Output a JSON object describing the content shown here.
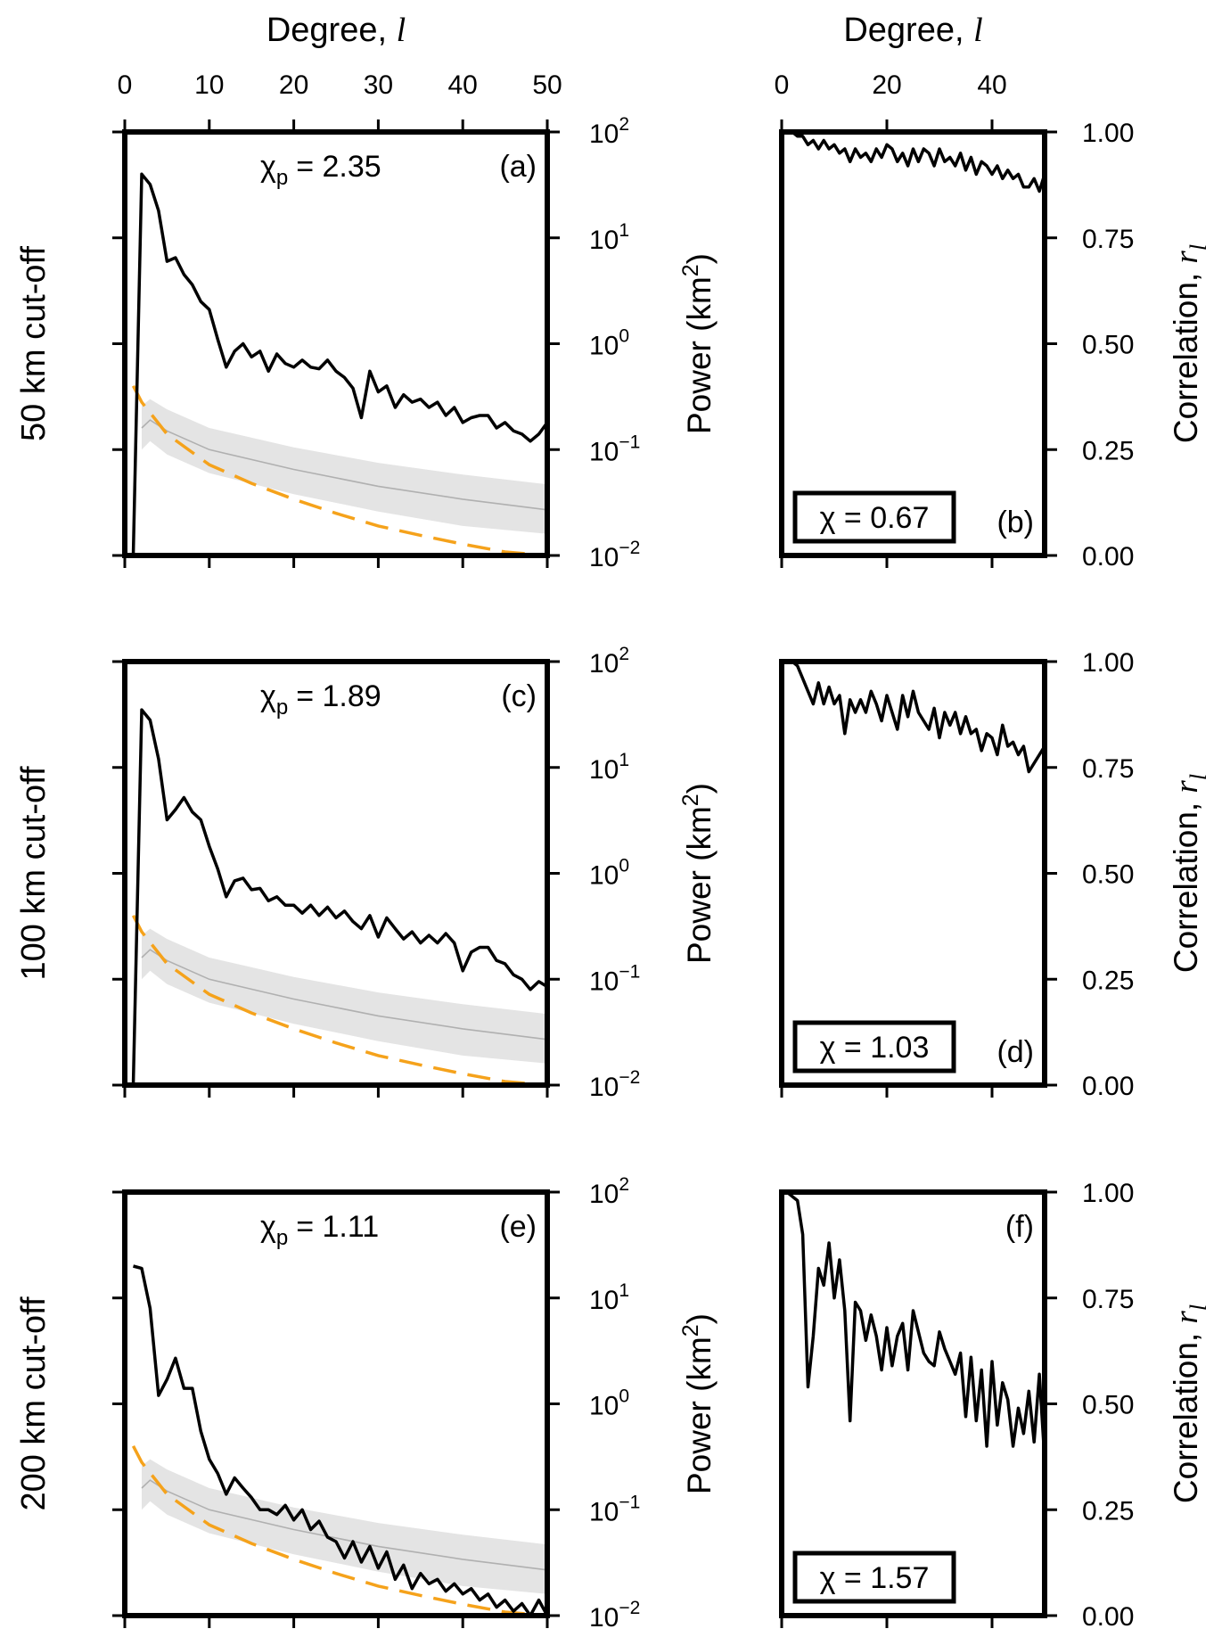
{
  "figure": {
    "x_axis_title": "Degree,",
    "x_axis_symbol": "l",
    "left_x_ticks": [
      0,
      10,
      20,
      30,
      40,
      50
    ],
    "right_x_ticks": [
      0,
      20,
      40
    ],
    "power_axis_label": "Power (km",
    "power_axis_sup": "2",
    "power_axis_close": ")",
    "correlation_axis_label": "Correlation,",
    "correlation_axis_symbol": "r",
    "correlation_axis_sub": "l",
    "power_ticks": [
      {
        "mant": "10",
        "exp": "2"
      },
      {
        "mant": "10",
        "exp": "1"
      },
      {
        "mant": "10",
        "exp": "0"
      },
      {
        "mant": "10",
        "exp": "−1"
      },
      {
        "mant": "10",
        "exp": "−2"
      }
    ],
    "correlation_ticks": [
      "1.00",
      "0.75",
      "0.50",
      "0.25",
      "0.00"
    ],
    "colors": {
      "observed": "#000000",
      "model": "#f5a21b",
      "band": "#e4e4e4",
      "median": "#b0b0b0"
    }
  },
  "rows": [
    {
      "row_label": "50 km cut-off",
      "power_panel": {
        "letter": "(a)",
        "chi_symbol": "χ",
        "chi_sub": "p",
        "chi_text": "= 2.35"
      },
      "corr_panel": {
        "letter": "(b)",
        "chi_text": "χ = 0.67"
      }
    },
    {
      "row_label": "100 km cut-off",
      "power_panel": {
        "letter": "(c)",
        "chi_symbol": "χ",
        "chi_sub": "p",
        "chi_text": "= 1.89"
      },
      "corr_panel": {
        "letter": "(d)",
        "chi_text": "χ = 1.03"
      }
    },
    {
      "row_label": "200 km cut-off",
      "power_panel": {
        "letter": "(e)",
        "chi_symbol": "χ",
        "chi_sub": "p",
        "chi_text": "= 1.11"
      },
      "corr_panel": {
        "letter": "(f)",
        "chi_text": "χ = 1.57"
      }
    }
  ],
  "chart_data": [
    {
      "panel": "a",
      "type": "line",
      "yscale": "log",
      "xlim": [
        0,
        50
      ],
      "ylim": [
        0.01,
        100
      ],
      "xlabel": "Degree, l",
      "ylabel": "Power (km2)",
      "series": [
        {
          "role": "observed",
          "x": [
            1,
            2,
            3,
            4,
            5,
            6,
            7,
            8,
            9,
            10,
            11,
            12,
            13,
            14,
            15,
            16,
            17,
            18,
            19,
            20,
            21,
            22,
            23,
            24,
            25,
            26,
            27,
            28,
            29,
            30,
            31,
            32,
            33,
            34,
            35,
            36,
            37,
            38,
            39,
            40,
            41,
            42,
            43,
            44,
            45,
            46,
            47,
            48,
            49,
            50
          ],
          "y": [
            0.01,
            40,
            32,
            18,
            6,
            6.5,
            4.5,
            3.6,
            2.5,
            2.1,
            1.1,
            0.6,
            0.85,
            1.0,
            0.75,
            0.85,
            0.55,
            0.8,
            0.65,
            0.6,
            0.7,
            0.6,
            0.58,
            0.7,
            0.55,
            0.48,
            0.38,
            0.2,
            0.55,
            0.35,
            0.4,
            0.25,
            0.33,
            0.28,
            0.3,
            0.25,
            0.28,
            0.21,
            0.25,
            0.18,
            0.2,
            0.21,
            0.21,
            0.16,
            0.18,
            0.15,
            0.14,
            0.12,
            0.14,
            0.18
          ]
        },
        {
          "role": "model",
          "x": [
            1,
            2,
            5,
            10,
            15,
            20,
            25,
            30,
            35,
            40,
            45,
            50
          ],
          "y": [
            0.4,
            0.28,
            0.14,
            0.072,
            0.048,
            0.034,
            0.025,
            0.019,
            0.0155,
            0.0128,
            0.0108,
            0.0095
          ]
        },
        {
          "role": "model_median",
          "x": [
            2,
            3,
            5,
            10,
            20,
            30,
            40,
            50
          ],
          "y": [
            0.16,
            0.19,
            0.15,
            0.1,
            0.065,
            0.045,
            0.034,
            0.027
          ]
        },
        {
          "role": "model_range_high",
          "x": [
            2,
            3,
            5,
            10,
            20,
            30,
            40,
            50
          ],
          "y": [
            0.26,
            0.3,
            0.24,
            0.16,
            0.105,
            0.075,
            0.058,
            0.047
          ]
        },
        {
          "role": "model_range_low",
          "x": [
            2,
            3,
            5,
            10,
            20,
            30,
            40,
            50
          ],
          "y": [
            0.1,
            0.12,
            0.09,
            0.06,
            0.038,
            0.026,
            0.019,
            0.016
          ]
        }
      ]
    },
    {
      "panel": "b",
      "type": "line",
      "xlim": [
        0,
        50
      ],
      "ylim": [
        0,
        1
      ],
      "xlabel": "Degree, l",
      "ylabel": "Correlation, r l",
      "series": [
        {
          "role": "observed",
          "x": [
            1,
            2,
            3,
            4,
            5,
            6,
            7,
            8,
            9,
            10,
            11,
            12,
            13,
            14,
            15,
            16,
            17,
            18,
            19,
            20,
            21,
            22,
            23,
            24,
            25,
            26,
            27,
            28,
            29,
            30,
            31,
            32,
            33,
            34,
            35,
            36,
            37,
            38,
            39,
            40,
            41,
            42,
            43,
            44,
            45,
            46,
            47,
            48,
            49,
            50
          ],
          "y": [
            1.0,
            1.0,
            0.99,
            0.99,
            0.97,
            0.98,
            0.96,
            0.98,
            0.96,
            0.97,
            0.95,
            0.96,
            0.93,
            0.96,
            0.94,
            0.95,
            0.93,
            0.96,
            0.94,
            0.97,
            0.96,
            0.93,
            0.95,
            0.92,
            0.96,
            0.93,
            0.96,
            0.95,
            0.92,
            0.96,
            0.93,
            0.94,
            0.92,
            0.95,
            0.91,
            0.94,
            0.9,
            0.93,
            0.92,
            0.9,
            0.92,
            0.89,
            0.91,
            0.89,
            0.9,
            0.87,
            0.87,
            0.89,
            0.86,
            0.9
          ]
        }
      ]
    },
    {
      "panel": "c",
      "type": "line",
      "yscale": "log",
      "xlim": [
        0,
        50
      ],
      "ylim": [
        0.01,
        100
      ],
      "xlabel": "Degree, l",
      "ylabel": "Power (km2)",
      "series": [
        {
          "role": "observed",
          "x": [
            1,
            2,
            3,
            4,
            5,
            6,
            7,
            8,
            9,
            10,
            11,
            12,
            13,
            14,
            15,
            16,
            17,
            18,
            19,
            20,
            21,
            22,
            23,
            24,
            25,
            26,
            27,
            28,
            29,
            30,
            31,
            32,
            33,
            34,
            35,
            36,
            37,
            38,
            39,
            40,
            41,
            42,
            43,
            44,
            45,
            46,
            47,
            48,
            49,
            50
          ],
          "y": [
            0.01,
            35,
            28,
            12,
            3.2,
            4.0,
            5.2,
            3.8,
            3.2,
            1.8,
            1.1,
            0.6,
            0.85,
            0.9,
            0.7,
            0.72,
            0.55,
            0.6,
            0.5,
            0.5,
            0.42,
            0.5,
            0.4,
            0.48,
            0.38,
            0.44,
            0.35,
            0.3,
            0.4,
            0.25,
            0.38,
            0.3,
            0.24,
            0.28,
            0.22,
            0.26,
            0.22,
            0.27,
            0.22,
            0.12,
            0.18,
            0.2,
            0.2,
            0.15,
            0.14,
            0.11,
            0.1,
            0.08,
            0.095,
            0.085
          ]
        },
        {
          "role": "model",
          "x": [
            1,
            2,
            5,
            10,
            15,
            20,
            25,
            30,
            35,
            40,
            45,
            50
          ],
          "y": [
            0.4,
            0.28,
            0.14,
            0.072,
            0.048,
            0.034,
            0.025,
            0.019,
            0.0155,
            0.0128,
            0.0108,
            0.0095
          ]
        },
        {
          "role": "model_median",
          "x": [
            2,
            3,
            5,
            10,
            20,
            30,
            40,
            50
          ],
          "y": [
            0.16,
            0.19,
            0.15,
            0.1,
            0.065,
            0.045,
            0.034,
            0.027
          ]
        },
        {
          "role": "model_range_high",
          "x": [
            2,
            3,
            5,
            10,
            20,
            30,
            40,
            50
          ],
          "y": [
            0.26,
            0.3,
            0.24,
            0.16,
            0.105,
            0.075,
            0.058,
            0.047
          ]
        },
        {
          "role": "model_range_low",
          "x": [
            2,
            3,
            5,
            10,
            20,
            30,
            40,
            50
          ],
          "y": [
            0.1,
            0.12,
            0.09,
            0.06,
            0.038,
            0.026,
            0.019,
            0.016
          ]
        }
      ]
    },
    {
      "panel": "d",
      "type": "line",
      "xlim": [
        0,
        50
      ],
      "ylim": [
        0,
        1
      ],
      "xlabel": "Degree, l",
      "ylabel": "Correlation, r l",
      "series": [
        {
          "role": "observed",
          "x": [
            1,
            2,
            3,
            4,
            5,
            6,
            7,
            8,
            9,
            10,
            11,
            12,
            13,
            14,
            15,
            16,
            17,
            18,
            19,
            20,
            21,
            22,
            23,
            24,
            25,
            26,
            27,
            28,
            29,
            30,
            31,
            32,
            33,
            34,
            35,
            36,
            37,
            38,
            39,
            40,
            41,
            42,
            43,
            44,
            45,
            46,
            47,
            48,
            49,
            50
          ],
          "y": [
            1.0,
            1.0,
            0.99,
            0.96,
            0.93,
            0.9,
            0.95,
            0.9,
            0.94,
            0.9,
            0.92,
            0.83,
            0.91,
            0.88,
            0.91,
            0.88,
            0.93,
            0.9,
            0.86,
            0.92,
            0.88,
            0.84,
            0.92,
            0.87,
            0.93,
            0.88,
            0.86,
            0.84,
            0.89,
            0.82,
            0.88,
            0.85,
            0.88,
            0.83,
            0.87,
            0.83,
            0.84,
            0.79,
            0.83,
            0.82,
            0.78,
            0.85,
            0.8,
            0.81,
            0.78,
            0.8,
            0.74,
            0.76,
            0.78,
            0.8
          ]
        }
      ]
    },
    {
      "panel": "e",
      "type": "line",
      "yscale": "log",
      "xlim": [
        0,
        50
      ],
      "ylim": [
        0.01,
        100
      ],
      "xlabel": "Degree, l",
      "ylabel": "Power (km2)",
      "series": [
        {
          "role": "observed",
          "x": [
            1,
            2,
            3,
            4,
            5,
            6,
            7,
            8,
            9,
            10,
            11,
            12,
            13,
            14,
            15,
            16,
            17,
            18,
            19,
            20,
            21,
            22,
            23,
            24,
            25,
            26,
            27,
            28,
            29,
            30,
            31,
            32,
            33,
            34,
            35,
            36,
            37,
            38,
            39,
            40,
            41,
            42,
            43,
            44,
            45,
            46,
            47,
            48,
            49,
            50
          ],
          "y": [
            20,
            19,
            8.0,
            1.2,
            1.7,
            2.7,
            1.4,
            1.4,
            0.55,
            0.3,
            0.22,
            0.14,
            0.2,
            0.16,
            0.13,
            0.1,
            0.1,
            0.09,
            0.11,
            0.08,
            0.1,
            0.065,
            0.078,
            0.055,
            0.05,
            0.035,
            0.05,
            0.032,
            0.045,
            0.028,
            0.04,
            0.022,
            0.03,
            0.018,
            0.025,
            0.02,
            0.022,
            0.017,
            0.02,
            0.016,
            0.018,
            0.014,
            0.016,
            0.012,
            0.014,
            0.011,
            0.013,
            0.01,
            0.014,
            0.01
          ]
        },
        {
          "role": "model",
          "x": [
            1,
            2,
            5,
            10,
            15,
            20,
            25,
            30,
            35,
            40,
            45,
            50
          ],
          "y": [
            0.4,
            0.28,
            0.14,
            0.072,
            0.048,
            0.034,
            0.025,
            0.019,
            0.0155,
            0.0128,
            0.0108,
            0.0095
          ]
        },
        {
          "role": "model_median",
          "x": [
            2,
            3,
            5,
            10,
            20,
            30,
            40,
            50
          ],
          "y": [
            0.16,
            0.19,
            0.15,
            0.1,
            0.065,
            0.045,
            0.034,
            0.027
          ]
        },
        {
          "role": "model_range_high",
          "x": [
            2,
            3,
            5,
            10,
            20,
            30,
            40,
            50
          ],
          "y": [
            0.26,
            0.3,
            0.24,
            0.16,
            0.105,
            0.075,
            0.058,
            0.047
          ]
        },
        {
          "role": "model_range_low",
          "x": [
            2,
            3,
            5,
            10,
            20,
            30,
            40,
            50
          ],
          "y": [
            0.1,
            0.12,
            0.09,
            0.06,
            0.038,
            0.026,
            0.019,
            0.016
          ]
        }
      ]
    },
    {
      "panel": "f",
      "type": "line",
      "xlim": [
        0,
        50
      ],
      "ylim": [
        0,
        1
      ],
      "xlabel": "Degree, l",
      "ylabel": "Correlation, r l",
      "series": [
        {
          "role": "observed",
          "x": [
            1,
            2,
            3,
            4,
            5,
            6,
            7,
            8,
            9,
            10,
            11,
            12,
            13,
            14,
            15,
            16,
            17,
            18,
            19,
            20,
            21,
            22,
            23,
            24,
            25,
            26,
            27,
            28,
            29,
            30,
            31,
            32,
            33,
            34,
            35,
            36,
            37,
            38,
            39,
            40,
            41,
            42,
            43,
            44,
            45,
            46,
            47,
            48,
            49,
            50
          ],
          "y": [
            1.0,
            0.99,
            0.98,
            0.9,
            0.54,
            0.66,
            0.82,
            0.78,
            0.88,
            0.75,
            0.84,
            0.72,
            0.46,
            0.74,
            0.72,
            0.65,
            0.71,
            0.66,
            0.58,
            0.68,
            0.59,
            0.66,
            0.69,
            0.58,
            0.72,
            0.67,
            0.62,
            0.6,
            0.59,
            0.67,
            0.63,
            0.6,
            0.57,
            0.62,
            0.47,
            0.61,
            0.46,
            0.58,
            0.4,
            0.6,
            0.45,
            0.55,
            0.51,
            0.4,
            0.49,
            0.43,
            0.53,
            0.41,
            0.57,
            0.37
          ]
        }
      ]
    }
  ]
}
